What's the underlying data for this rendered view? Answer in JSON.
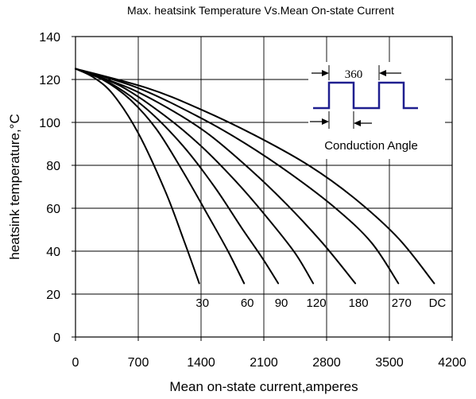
{
  "chart_data": {
    "type": "line",
    "title": "Max. heatsink Temperature Vs.Mean On-state Current",
    "xlabel": "Mean on-state current,amperes",
    "ylabel": "heatsink temperature,°C",
    "xlim": [
      0,
      4200
    ],
    "ylim": [
      0,
      140
    ],
    "x_ticks": [
      0,
      700,
      1400,
      2100,
      2800,
      3500,
      4200
    ],
    "y_ticks": [
      0,
      20,
      40,
      60,
      80,
      100,
      120,
      140
    ],
    "grid": true,
    "series": [
      {
        "name": "30",
        "points": [
          [
            0,
            125
          ],
          [
            200,
            121
          ],
          [
            420,
            113
          ],
          [
            700,
            95
          ],
          [
            1000,
            68
          ],
          [
            1200,
            46
          ],
          [
            1380,
            25
          ]
        ]
      },
      {
        "name": "60",
        "points": [
          [
            0,
            125
          ],
          [
            300,
            120
          ],
          [
            600,
            111
          ],
          [
            900,
            97
          ],
          [
            1200,
            77
          ],
          [
            1500,
            55
          ],
          [
            1700,
            40
          ],
          [
            1880,
            25
          ]
        ]
      },
      {
        "name": "90",
        "points": [
          [
            0,
            125
          ],
          [
            400,
            118
          ],
          [
            800,
            106
          ],
          [
            1200,
            89
          ],
          [
            1550,
            70
          ],
          [
            1850,
            51
          ],
          [
            2080,
            37
          ],
          [
            2260,
            25
          ]
        ]
      },
      {
        "name": "120",
        "points": [
          [
            0,
            125
          ],
          [
            500,
            117
          ],
          [
            1000,
            103
          ],
          [
            1400,
            89
          ],
          [
            1800,
            72
          ],
          [
            2150,
            55
          ],
          [
            2450,
            39
          ],
          [
            2650,
            25
          ]
        ]
      },
      {
        "name": "180",
        "points": [
          [
            0,
            125
          ],
          [
            600,
            116
          ],
          [
            1100,
            105
          ],
          [
            1500,
            94
          ],
          [
            1950,
            78
          ],
          [
            2350,
            62
          ],
          [
            2750,
            44
          ],
          [
            3120,
            25
          ]
        ]
      },
      {
        "name": "270",
        "points": [
          [
            0,
            125
          ],
          [
            700,
            116
          ],
          [
            1400,
            102
          ],
          [
            1900,
            90
          ],
          [
            2400,
            76
          ],
          [
            2900,
            60
          ],
          [
            3300,
            44
          ],
          [
            3600,
            25
          ]
        ]
      },
      {
        "name": "DC",
        "points": [
          [
            0,
            125
          ],
          [
            800,
            116
          ],
          [
            1400,
            106
          ],
          [
            2000,
            94
          ],
          [
            2600,
            80
          ],
          [
            3100,
            65
          ],
          [
            3600,
            46
          ],
          [
            4000,
            25
          ]
        ]
      }
    ],
    "inset": {
      "period_label": "360",
      "caption": "Conduction Angle"
    }
  }
}
